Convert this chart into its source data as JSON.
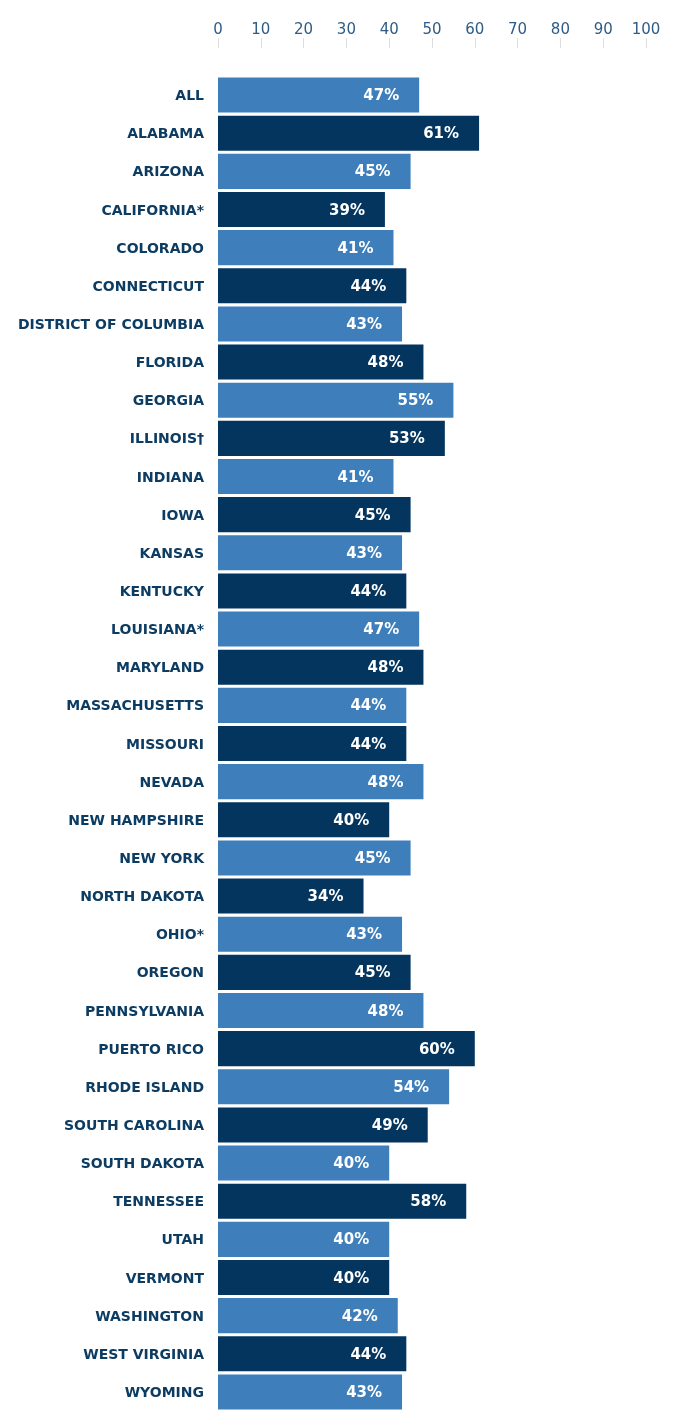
{
  "chart_data": {
    "type": "bar",
    "orientation": "horizontal",
    "categories": [
      "ALL",
      "ALABAMA",
      "ARIZONA",
      "CALIFORNIA*",
      "COLORADO",
      "CONNECTICUT",
      "DISTRICT OF COLUMBIA",
      "FLORIDA",
      "GEORGIA",
      "ILLINOIS†",
      "INDIANA",
      "IOWA",
      "KANSAS",
      "KENTUCKY",
      "LOUISIANA*",
      "MARYLAND",
      "MASSACHUSETTS",
      "MISSOURI",
      "NEVADA",
      "NEW HAMPSHIRE",
      "NEW YORK",
      "NORTH DAKOTA",
      "OHIO*",
      "OREGON",
      "PENNSYLVANIA",
      "PUERTO RICO",
      "RHODE ISLAND",
      "SOUTH CAROLINA",
      "SOUTH DAKOTA",
      "TENNESSEE",
      "UTAH",
      "VERMONT",
      "WASHINGTON",
      "WEST VIRGINIA",
      "WYOMING"
    ],
    "values": [
      47,
      61,
      45,
      39,
      41,
      44,
      43,
      48,
      55,
      53,
      41,
      45,
      43,
      44,
      47,
      48,
      44,
      44,
      48,
      40,
      45,
      34,
      43,
      45,
      48,
      60,
      54,
      49,
      40,
      58,
      40,
      40,
      42,
      44,
      43
    ],
    "value_labels": [
      "47%",
      "61%",
      "45%",
      "39%",
      "41%",
      "44%",
      "43%",
      "48%",
      "55%",
      "53%",
      "41%",
      "45%",
      "43%",
      "44%",
      "47%",
      "48%",
      "44%",
      "44%",
      "48%",
      "40%",
      "45%",
      "34%",
      "43%",
      "45%",
      "48%",
      "60%",
      "54%",
      "49%",
      "40%",
      "58%",
      "40%",
      "40%",
      "42%",
      "44%",
      "43%"
    ],
    "colors": [
      "#3d7ebb",
      "#03355e",
      "#3d7ebb",
      "#03355e",
      "#3d7ebb",
      "#03355e",
      "#3d7ebb",
      "#03355e",
      "#3d7ebb",
      "#03355e",
      "#3d7ebb",
      "#03355e",
      "#3d7ebb",
      "#03355e",
      "#3d7ebb",
      "#03355e",
      "#3d7ebb",
      "#03355e",
      "#3d7ebb",
      "#03355e",
      "#3d7ebb",
      "#03355e",
      "#3d7ebb",
      "#03355e",
      "#3d7ebb",
      "#03355e",
      "#3d7ebb",
      "#03355e",
      "#3d7ebb",
      "#03355e",
      "#3d7ebb",
      "#03355e",
      "#3d7ebb",
      "#03355e",
      "#3d7ebb"
    ],
    "xlim": [
      0,
      100
    ],
    "xticks": [
      0,
      10,
      20,
      30,
      40,
      50,
      60,
      70,
      80,
      90,
      100
    ],
    "grid": false
  }
}
